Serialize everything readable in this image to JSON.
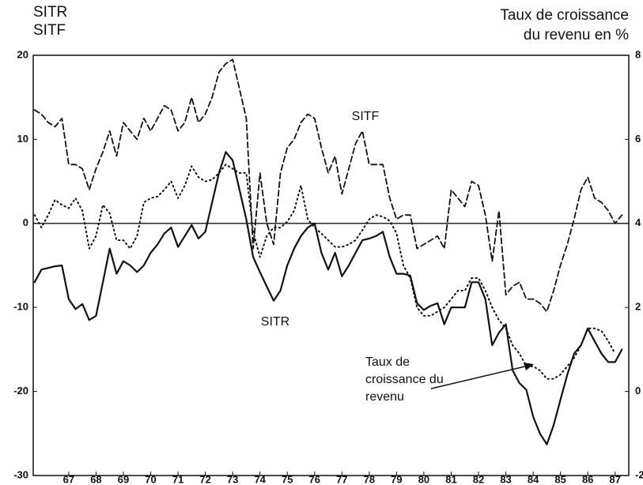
{
  "chart_data": {
    "type": "line",
    "y_label_lines": [
      "SITR",
      "SITF"
    ],
    "y2_label_lines": [
      "Taux de croissance",
      "du revenu en %"
    ],
    "annotation_lines": [
      "Taux de",
      "croissance du",
      "revenu"
    ],
    "xlim": [
      65.7,
      87.5
    ],
    "xticks": [
      67,
      68,
      69,
      70,
      71,
      72,
      73,
      74,
      75,
      76,
      77,
      78,
      79,
      80,
      81,
      82,
      83,
      84,
      85,
      86,
      87
    ],
    "ylim": [
      -30,
      20
    ],
    "yticks": [
      20,
      10,
      0,
      -10,
      -20,
      -30
    ],
    "y2lim": [
      -2,
      8
    ],
    "y2ticks": [
      8,
      6,
      4,
      2,
      0,
      -2
    ],
    "x": [
      65.75,
      66,
      66.25,
      66.5,
      66.75,
      67,
      67.25,
      67.5,
      67.75,
      68,
      68.25,
      68.5,
      68.75,
      69,
      69.25,
      69.5,
      69.75,
      70,
      70.25,
      70.5,
      70.75,
      71,
      71.25,
      71.5,
      71.75,
      72,
      72.25,
      72.5,
      72.75,
      73,
      73.25,
      73.5,
      73.75,
      74,
      74.25,
      74.5,
      74.75,
      75,
      75.25,
      75.5,
      75.75,
      76,
      76.25,
      76.5,
      76.75,
      77,
      77.25,
      77.5,
      77.75,
      78,
      78.25,
      78.5,
      78.75,
      79,
      79.25,
      79.5,
      79.75,
      80,
      80.25,
      80.5,
      80.75,
      81,
      81.25,
      81.5,
      81.75,
      82,
      82.25,
      82.5,
      82.75,
      83,
      83.25,
      83.5,
      83.75,
      84,
      84.25,
      84.5,
      84.75,
      85,
      85.25,
      85.5,
      85.75,
      86,
      86.25,
      86.5,
      86.75,
      87,
      87.25
    ],
    "series": [
      {
        "name": "SITF",
        "color": "#111111",
        "style": "dashed",
        "values": [
          13.5,
          13,
          12,
          11.5,
          12.5,
          7,
          7,
          6.5,
          4,
          6.5,
          8.5,
          11,
          8,
          12,
          11,
          10,
          12.5,
          11,
          12.5,
          14,
          13.5,
          11,
          12,
          15,
          12,
          13,
          15,
          18,
          19,
          19.5,
          16,
          12.5,
          -3,
          6,
          0,
          -2.5,
          6,
          9,
          10,
          12,
          13,
          12.5,
          9,
          6,
          8,
          3.5,
          6.5,
          9.5,
          11,
          7,
          7,
          7,
          3,
          0.5,
          1,
          1,
          -3,
          -2.5,
          -2,
          -1.5,
          -3,
          4,
          3,
          2,
          5,
          4.5,
          1,
          -4.5,
          1.5,
          -8.5,
          -7.5,
          -7,
          -9,
          -9,
          -9.5,
          -10.5,
          -8,
          -5,
          -2.5,
          0.5,
          4,
          5.5,
          3,
          2.5,
          1.5,
          0,
          1
        ]
      },
      {
        "name": "SITR",
        "color": "#111111",
        "style": "solid",
        "values": [
          -7,
          -5.5,
          -5.3,
          -5.1,
          -5,
          -9,
          -10.2,
          -9.6,
          -11.5,
          -11,
          -7,
          -3,
          -6,
          -4.5,
          -5,
          -5.8,
          -5,
          -3.5,
          -2.5,
          -1.2,
          -0.5,
          -2.8,
          -1.5,
          -0.2,
          -1.8,
          -1,
          2.5,
          6,
          8.5,
          7.5,
          4,
          0.5,
          -4,
          -5.8,
          -7.5,
          -9.2,
          -8,
          -5,
          -3,
          -1.5,
          -0.5,
          0,
          -3.5,
          -5.5,
          -3.5,
          -6.3,
          -5,
          -3.5,
          -2,
          -1.8,
          -1.5,
          -1,
          -4,
          -6,
          -6,
          -6.2,
          -9.5,
          -10.3,
          -9.8,
          -9.5,
          -12,
          -10,
          -10,
          -10,
          -7,
          -7,
          -9,
          -14.5,
          -13,
          -12,
          -17.5,
          -19,
          -19.8,
          -23,
          -25,
          -26.3,
          -24,
          -21,
          -18,
          -15.5,
          -14.5,
          -12.5,
          -14,
          -15.5,
          -16.5,
          -16.5,
          -15
        ]
      },
      {
        "color": "#111111",
        "style": "dotted",
        "axis": "y2",
        "values": [
          4.2,
          3.9,
          4.2,
          4.56,
          4.44,
          4.36,
          4.6,
          4.3,
          3.4,
          3.7,
          4.44,
          4.24,
          3.6,
          3.6,
          3.4,
          3.7,
          4.5,
          4.6,
          4.64,
          4.8,
          5,
          4.6,
          4.9,
          5.36,
          5.1,
          5,
          5.04,
          5.2,
          5.4,
          5.3,
          5.2,
          5.2,
          3.8,
          3.2,
          3.7,
          3.9,
          3.9,
          4.04,
          4.3,
          4.9,
          4.1,
          3.9,
          3.76,
          3.6,
          3.44,
          3.44,
          3.5,
          3.6,
          3.84,
          4.1,
          4.2,
          4.16,
          4.06,
          3.76,
          3,
          2.7,
          2,
          1.8,
          1.8,
          1.9,
          2,
          2.2,
          2.4,
          2.4,
          2.7,
          2.7,
          2.4,
          2,
          1.7,
          1.5,
          1.1,
          0.9,
          0.6,
          0.6,
          0.5,
          0.3,
          0.3,
          0.4,
          0.6,
          0.8,
          1.1,
          1.5,
          1.5,
          1.44,
          1.2,
          0.9,
          null
        ]
      }
    ]
  }
}
